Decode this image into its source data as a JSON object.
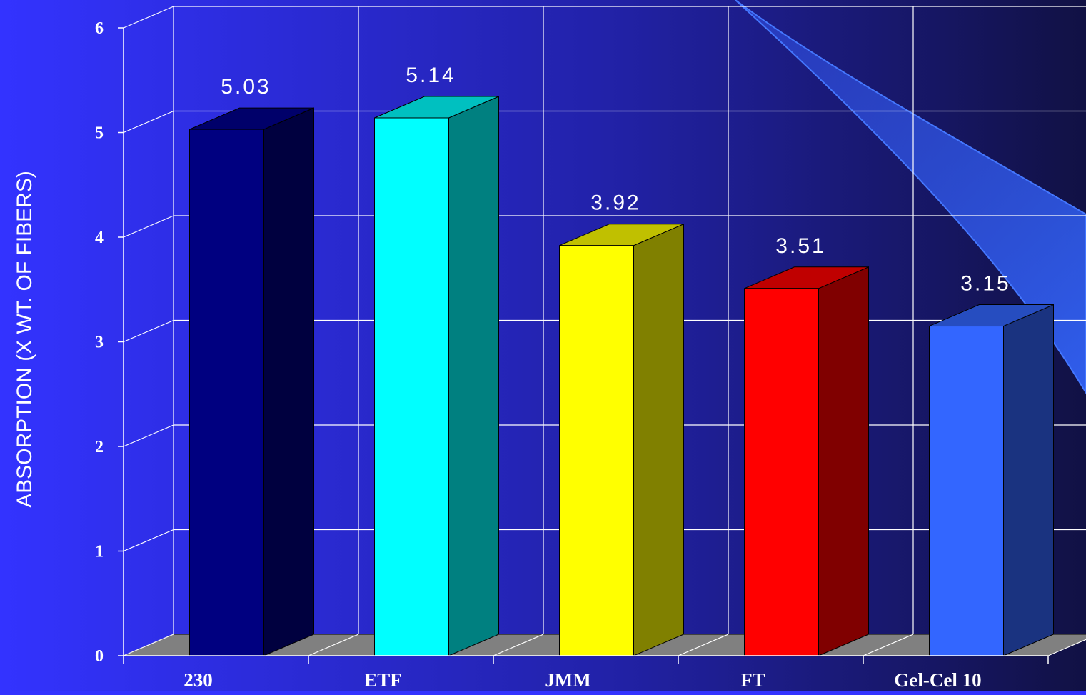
{
  "chart_data": {
    "type": "bar",
    "title": "",
    "xlabel": "",
    "ylabel": "ABSORPTION (X WT. OF FIBERS)",
    "categories": [
      "230",
      "ETF",
      "JMM",
      "FT",
      "Gel-Cel 10"
    ],
    "values": [
      5.03,
      5.14,
      3.92,
      3.51,
      3.15
    ],
    "data_labels": [
      "5.03",
      "5.14",
      "3.92",
      "3.51",
      "3.15"
    ],
    "ylim": [
      0,
      6
    ],
    "yticks": [
      0,
      1,
      2,
      3,
      4,
      5,
      6
    ],
    "grid": true,
    "style": "3d-column",
    "bar_colors": [
      {
        "front": "#000080",
        "side": "#00003f",
        "top": "#00006a"
      },
      {
        "front": "#00ffff",
        "side": "#008080",
        "top": "#00c0c0"
      },
      {
        "front": "#ffff00",
        "side": "#808000",
        "top": "#c0c000"
      },
      {
        "front": "#ff0000",
        "side": "#800000",
        "top": "#c00000"
      },
      {
        "front": "#3366ff",
        "side": "#1a3380",
        "top": "#264dc0"
      }
    ],
    "background": {
      "left": "#3333ff",
      "right": "#111144"
    },
    "floor_color": "#808080",
    "grid_color": "#ffffff"
  }
}
